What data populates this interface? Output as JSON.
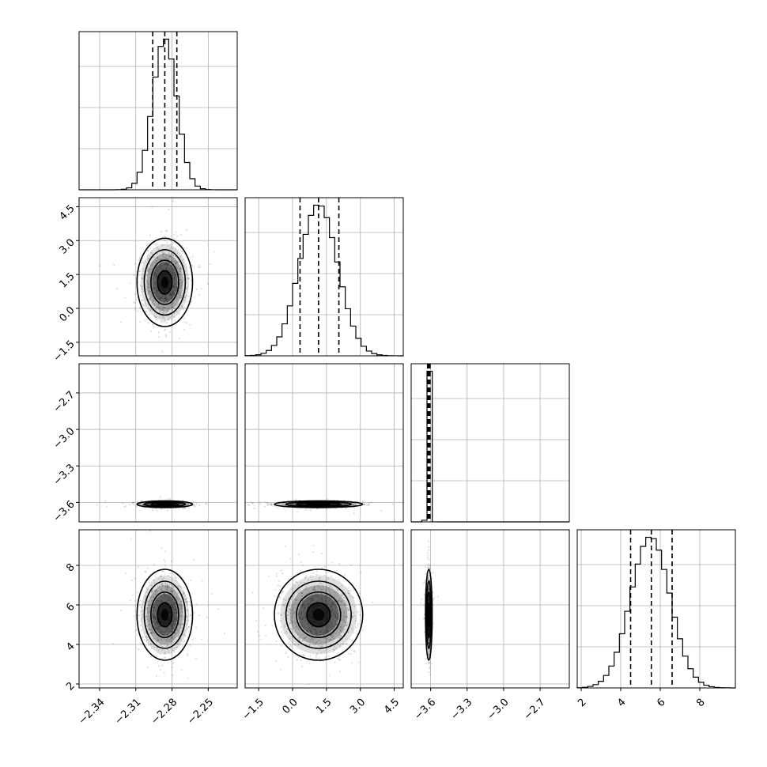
{
  "chart_data": {
    "type": "corner",
    "parameters": [
      {
        "name": "",
        "range": [
          -2.357,
          -2.226
        ],
        "ticks": [
          "−2.34",
          "−2.31",
          "−2.28",
          "−2.25"
        ],
        "tick_values": [
          -2.34,
          -2.31,
          -2.28,
          -2.25
        ],
        "quantiles": [
          -2.296,
          -2.286,
          -2.276
        ],
        "mean": -2.286,
        "sd": 0.01
      },
      {
        "name": "",
        "range": [
          -2.1,
          4.9
        ],
        "ticks": [
          "−1.5",
          "0.0",
          "1.5",
          "3.0",
          "4.5"
        ],
        "tick_values": [
          -1.5,
          0.0,
          1.5,
          3.0,
          4.5
        ],
        "quantiles": [
          0.33,
          1.15,
          2.05
        ],
        "mean": 1.15,
        "sd": 0.85
      },
      {
        "name": "",
        "range": [
          -3.76,
          -2.46
        ],
        "ticks": [
          "−3.6",
          "−3.3",
          "−3.0",
          "−2.7"
        ],
        "tick_values": [
          -3.6,
          -3.3,
          -3.0,
          -2.7
        ],
        "ticks_left": [
          "−2.7",
          "−3.0",
          "−3.3",
          "−3.6"
        ],
        "tick_values_left": [
          -2.7,
          -3.0,
          -3.3,
          -3.6
        ],
        "quantiles": [
          -3.625,
          -3.615,
          -3.605
        ],
        "mean": -3.615,
        "sd": 0.012
      },
      {
        "name": "",
        "range": [
          1.8,
          9.8
        ],
        "ticks": [
          "2",
          "4",
          "6",
          "8"
        ],
        "tick_values": [
          2,
          4,
          6,
          8
        ],
        "quantiles": [
          4.5,
          5.55,
          6.6
        ],
        "mean": 5.5,
        "sd": 1.0
      }
    ],
    "contour_levels_sigma": [
      0.6,
      1.15,
      1.7,
      2.3
    ],
    "grid": true
  }
}
